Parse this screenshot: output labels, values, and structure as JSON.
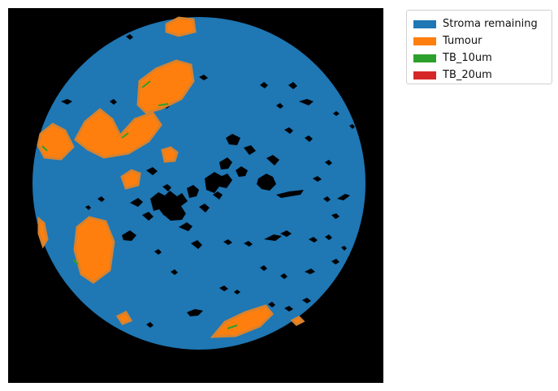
{
  "legend": {
    "items": [
      {
        "label": "Stroma remaining",
        "color": "#1f77b4"
      },
      {
        "label": "Tumour",
        "color": "#ff7f0e"
      },
      {
        "label": "TB_10um",
        "color": "#2ca02c"
      },
      {
        "label": "TB_20um",
        "color": "#d62728"
      }
    ]
  }
}
